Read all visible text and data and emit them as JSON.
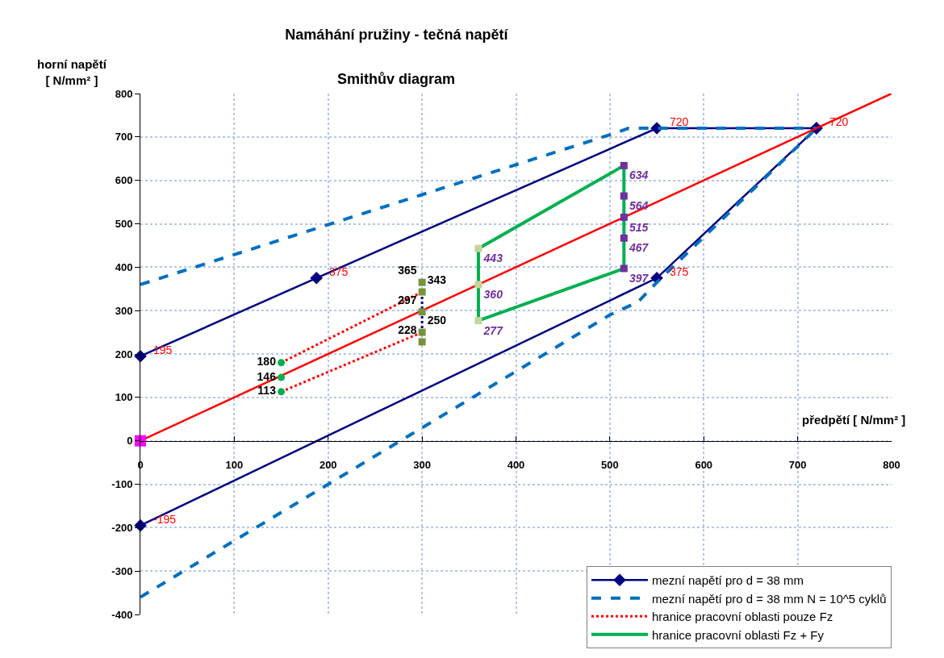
{
  "chart_data": {
    "type": "line",
    "title": "Namáhání pružiny - tečná napětí",
    "subtitle": "Smithův diagram",
    "xlabel": "předpětí [ N/mm² ]",
    "ylabel": "horní napětí\n[ N/mm² ]",
    "xlim": [
      0,
      800
    ],
    "xticks": [
      0,
      100,
      200,
      300,
      400,
      500,
      600,
      700,
      800
    ],
    "ylim": [
      -400,
      800
    ],
    "yticks": [
      -400,
      -300,
      -200,
      -100,
      0,
      100,
      200,
      300,
      400,
      500,
      600,
      700,
      800
    ],
    "grid": true,
    "legend": "bottom right",
    "series": [
      {
        "name": "mezní napětí pro d = 38 mm",
        "color": "#000080",
        "marker": "diamond",
        "line_style": "solid",
        "x": [
          0,
          187.5,
          550,
          720
        ],
        "values": [
          195,
          375,
          720,
          720
        ]
      },
      {
        "color": "#000080",
        "marker": "diamond",
        "line_style": "solid",
        "x": [
          0,
          550,
          720
        ],
        "values": [
          -195,
          375,
          720
        ]
      },
      {
        "name": "mezní napětí pro d = 38 mm N = 10^5 cyklů",
        "color": "#0070c0",
        "marker": "none",
        "line_style": "dashed",
        "x": [
          0,
          500,
          520,
          720
        ],
        "values": [
          360,
          705,
          720,
          720
        ]
      },
      {
        "color": "#0070c0",
        "marker": "none",
        "line_style": "dashed",
        "x": [
          0,
          500,
          530,
          550,
          720
        ],
        "values": [
          -360,
          290,
          320,
          365,
          720
        ]
      },
      {
        "color": "#ff0000",
        "marker": "none",
        "line_style": "solid",
        "x": [
          0,
          800
        ],
        "values": [
          0,
          800
        ]
      },
      {
        "type": "scatter",
        "color": "#ff00ff",
        "marker": "square",
        "x": [
          0
        ],
        "values": [
          0
        ]
      },
      {
        "name": "hranice pracovní oblasti pouze Fz",
        "color": "#ff0000",
        "marker": "none",
        "line_style": "dotted",
        "x": [
          150,
          300
        ],
        "values": [
          180,
          343
        ]
      },
      {
        "color": "#ff0000",
        "marker": "none",
        "line_style": "dotted",
        "x": [
          150,
          300
        ],
        "values": [
          113,
          250
        ]
      },
      {
        "color": "#000080",
        "marker": "none",
        "line_style": "dotted",
        "x": [
          300,
          300
        ],
        "values": [
          343,
          250
        ]
      },
      {
        "type": "scatter",
        "color": "#00b050",
        "marker": "circle",
        "x": [
          150,
          150,
          150
        ],
        "values": [
          180,
          146,
          113
        ],
        "value_labels": [
          "180",
          "146",
          "113"
        ]
      },
      {
        "type": "scatter",
        "color": "#77933c",
        "marker": "square",
        "x": [
          300,
          300,
          300,
          300,
          300
        ],
        "values": [
          365,
          343,
          297,
          250,
          228
        ],
        "value_labels": [
          "365",
          "343",
          "297",
          "250",
          "228"
        ]
      },
      {
        "name": "hranice pracovní oblasti Fz + Fy",
        "color": "#00b050",
        "marker": "none",
        "line_style": "solid",
        "x": [
          360,
          515
        ],
        "values": [
          443,
          634
        ]
      },
      {
        "color": "#00b050",
        "marker": "none",
        "line_style": "solid",
        "x": [
          360,
          515
        ],
        "values": [
          277,
          397
        ]
      },
      {
        "color": "#00b050",
        "marker": "none",
        "line_style": "solid",
        "x": [
          515,
          515
        ],
        "values": [
          634,
          397
        ]
      },
      {
        "color": "#00b050",
        "marker": "none",
        "line_style": "solid",
        "x": [
          360,
          360
        ],
        "values": [
          443,
          277
        ]
      },
      {
        "type": "scatter",
        "color": "#7030a0",
        "marker": "square",
        "x": [
          515,
          515,
          515,
          515,
          515
        ],
        "values": [
          634,
          564,
          515,
          467,
          397
        ],
        "value_labels": [
          "634",
          "564",
          "515",
          "467",
          "397"
        ]
      },
      {
        "type": "scatter",
        "color": "#c3d69b",
        "marker": "square",
        "x": [
          360,
          360,
          360
        ],
        "values": [
          443,
          360,
          277
        ],
        "value_labels": [
          "443",
          "360",
          "277"
        ]
      }
    ],
    "annotations": [
      {
        "text": "195",
        "x": 0,
        "y": 195
      },
      {
        "text": "375",
        "x": 187.5,
        "y": 375
      },
      {
        "text": "720",
        "x": 550,
        "y": 720
      },
      {
        "text": "720",
        "x": 720,
        "y": 720
      },
      {
        "text": "-195",
        "x": 0,
        "y": -195
      },
      {
        "text": "375",
        "x": 550,
        "y": 375
      }
    ]
  }
}
